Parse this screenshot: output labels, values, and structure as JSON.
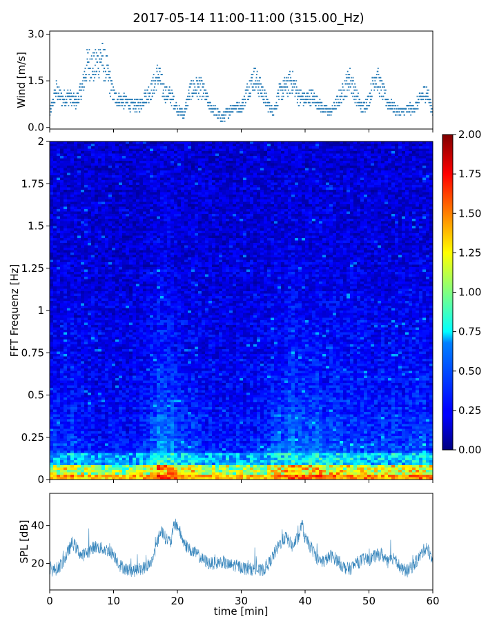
{
  "title": "2017-05-14 11:00-11:00 (315.00_Hz)",
  "chart_data": [
    {
      "type": "scatter",
      "name": "wind",
      "ylabel": "Wind [m/s]",
      "xlim": [
        0,
        60
      ],
      "ylim": [
        -0.05,
        3.1
      ],
      "yticks": [
        "0.0",
        "1.5",
        "3.0"
      ],
      "ytick_values": [
        0.0,
        1.5,
        3.0
      ],
      "color": "#1f77b4",
      "x": [
        0,
        1,
        2,
        3,
        4,
        5,
        6,
        7,
        8,
        9,
        10,
        11,
        12,
        13,
        14,
        15,
        16,
        17,
        18,
        19,
        20,
        21,
        22,
        23,
        24,
        25,
        26,
        27,
        28,
        29,
        30,
        31,
        32,
        33,
        34,
        35,
        36,
        37,
        38,
        39,
        40,
        41,
        42,
        43,
        44,
        45,
        46,
        47,
        48,
        49,
        50,
        51,
        52,
        53,
        54,
        55,
        56,
        57,
        58,
        59,
        60
      ],
      "y": [
        0.4,
        1.2,
        0.9,
        1.0,
        0.8,
        1.2,
        2.1,
        1.9,
        2.3,
        1.8,
        1.0,
        0.9,
        0.8,
        0.7,
        0.7,
        1.0,
        1.2,
        1.7,
        1.1,
        1.0,
        0.6,
        0.4,
        1.2,
        1.3,
        1.2,
        0.7,
        0.5,
        0.3,
        0.5,
        0.7,
        0.6,
        1.2,
        1.6,
        1.3,
        0.8,
        0.5,
        1.1,
        1.3,
        1.5,
        1.0,
        0.9,
        1.0,
        0.8,
        0.6,
        0.5,
        0.8,
        1.2,
        1.6,
        1.0,
        0.6,
        0.9,
        1.7,
        1.2,
        0.8,
        0.6,
        0.5,
        0.6,
        0.6,
        0.9,
        1.2,
        0.5
      ]
    },
    {
      "type": "heatmap",
      "name": "spectrogram",
      "ylabel": "FFT Frequenz [Hz]",
      "xlim": [
        0,
        60
      ],
      "ylim": [
        0,
        2
      ],
      "yticks": [
        "0",
        "0.25",
        "0.5",
        "0.75",
        "1",
        "1.25",
        "1.5",
        "1.75",
        "2"
      ],
      "ytick_values": [
        0,
        0.25,
        0.5,
        0.75,
        1,
        1.25,
        1.5,
        1.75,
        2
      ],
      "colormap": "jet",
      "colorbar": {
        "range": [
          0,
          2
        ],
        "ticks": [
          "0.00",
          "0.25",
          "0.50",
          "0.75",
          "1.00",
          "1.25",
          "1.50",
          "1.75",
          "2.00"
        ],
        "tick_values": [
          0,
          0.25,
          0.5,
          0.75,
          1.0,
          1.25,
          1.5,
          1.75,
          2.0
        ]
      },
      "time_activity_x": [
        0,
        3,
        6,
        9,
        12,
        15,
        17,
        18,
        20,
        22,
        25,
        28,
        31,
        34,
        36,
        38,
        40,
        42,
        44,
        46,
        49,
        52,
        55,
        58,
        60
      ],
      "time_activity": [
        0.35,
        0.4,
        0.3,
        0.25,
        0.25,
        0.3,
        0.7,
        0.75,
        0.6,
        0.45,
        0.3,
        0.3,
        0.3,
        0.35,
        0.55,
        0.65,
        0.7,
        0.55,
        0.5,
        0.45,
        0.4,
        0.45,
        0.4,
        0.5,
        0.45
      ]
    },
    {
      "type": "line",
      "name": "spl",
      "ylabel": "SPL [dB]",
      "xlabel": "time [min]",
      "xlim": [
        0,
        60
      ],
      "ylim": [
        6,
        57
      ],
      "xticks": [
        "0",
        "10",
        "20",
        "30",
        "40",
        "50",
        "60"
      ],
      "xtick_values": [
        0,
        10,
        20,
        30,
        40,
        50,
        60
      ],
      "yticks": [
        "20",
        "40"
      ],
      "ytick_values": [
        20,
        40
      ],
      "color": "#1f77b4",
      "x": [
        0,
        1,
        2,
        3,
        3.5,
        4,
        5,
        6,
        7,
        8,
        9,
        10,
        11,
        12,
        13,
        14,
        15,
        16,
        17,
        17.5,
        18,
        19,
        19.5,
        20,
        21,
        22,
        23,
        24,
        25,
        26,
        27,
        28,
        29,
        30,
        31,
        32,
        33,
        34,
        35,
        36,
        37,
        38,
        39,
        39.5,
        40,
        41,
        42,
        43,
        44,
        45,
        46,
        47,
        48,
        49,
        50,
        51,
        52,
        53,
        54,
        55,
        56,
        57,
        58,
        59,
        60
      ],
      "y": [
        16,
        17,
        20,
        27,
        31,
        29,
        24,
        26,
        29,
        28,
        27,
        25,
        19,
        17,
        16,
        17,
        18,
        21,
        33,
        38,
        34,
        31,
        41,
        40,
        31,
        27,
        25,
        22,
        20,
        20,
        21,
        19,
        19,
        18,
        17,
        17,
        16,
        18,
        24,
        30,
        34,
        29,
        34,
        41,
        33,
        28,
        22,
        21,
        24,
        22,
        18,
        17,
        20,
        22,
        22,
        24,
        25,
        20,
        24,
        17,
        16,
        19,
        24,
        29,
        22
      ]
    }
  ]
}
